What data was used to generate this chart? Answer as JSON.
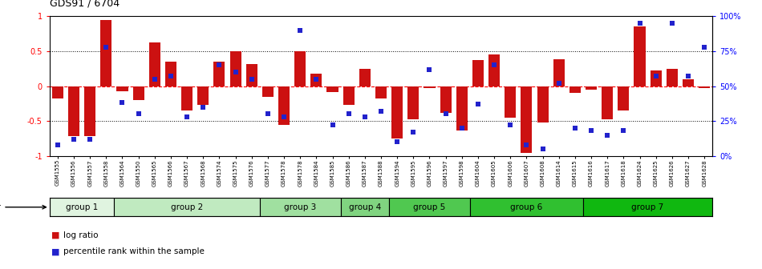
{
  "title": "GDS91 / 6704",
  "samples": [
    "GSM1555",
    "GSM1556",
    "GSM1557",
    "GSM1558",
    "GSM1564",
    "GSM1550",
    "GSM1565",
    "GSM1566",
    "GSM1567",
    "GSM1568",
    "GSM1574",
    "GSM1575",
    "GSM1576",
    "GSM1577",
    "GSM1578",
    "GSM1578",
    "GSM1584",
    "GSM1585",
    "GSM1586",
    "GSM1587",
    "GSM1588",
    "GSM1594",
    "GSM1595",
    "GSM1596",
    "GSM1597",
    "GSM1598",
    "GSM1604",
    "GSM1605",
    "GSM1606",
    "GSM1607",
    "GSM1608",
    "GSM1614",
    "GSM1615",
    "GSM1616",
    "GSM1617",
    "GSM1618",
    "GSM1624",
    "GSM1625",
    "GSM1626",
    "GSM1627",
    "GSM1628"
  ],
  "log_ratios": [
    -0.18,
    -0.72,
    -0.72,
    0.95,
    -0.07,
    -0.2,
    0.62,
    0.35,
    -0.35,
    -0.27,
    0.35,
    0.5,
    0.32,
    -0.15,
    -0.55,
    0.5,
    0.18,
    -0.09,
    -0.27,
    0.25,
    -0.18,
    -0.75,
    -0.48,
    -0.03,
    -0.38,
    -0.63,
    0.37,
    0.45,
    -0.45,
    -0.95,
    -0.52,
    0.38,
    -0.1,
    -0.05,
    -0.47,
    -0.35,
    0.85,
    0.22,
    0.25,
    0.1,
    -0.03
  ],
  "percentile_ranks": [
    0.08,
    0.12,
    0.12,
    0.78,
    0.38,
    0.3,
    0.55,
    0.57,
    0.28,
    0.35,
    0.65,
    0.6,
    0.55,
    0.3,
    0.28,
    0.9,
    0.55,
    0.22,
    0.3,
    0.28,
    0.32,
    0.1,
    0.17,
    0.62,
    0.3,
    0.2,
    0.37,
    0.65,
    0.22,
    0.08,
    0.05,
    0.52,
    0.2,
    0.18,
    0.15,
    0.18,
    0.95,
    0.57,
    0.95,
    0.57,
    0.78
  ],
  "groups": [
    {
      "label": "group 1",
      "start": 0,
      "end": 4,
      "color": "#e0f4e0"
    },
    {
      "label": "group 2",
      "start": 4,
      "end": 13,
      "color": "#c0eac0"
    },
    {
      "label": "group 3",
      "start": 13,
      "end": 18,
      "color": "#a0e0a0"
    },
    {
      "label": "group 4",
      "start": 18,
      "end": 21,
      "color": "#80d480"
    },
    {
      "label": "group 5",
      "start": 21,
      "end": 26,
      "color": "#50c850"
    },
    {
      "label": "group 6",
      "start": 26,
      "end": 33,
      "color": "#30c030"
    },
    {
      "label": "group 7",
      "start": 33,
      "end": 41,
      "color": "#10b810"
    }
  ],
  "bar_color": "#cc1111",
  "dot_color": "#2222cc",
  "bg_color": "#ffffff",
  "yticks_left": [
    -1.0,
    -0.5,
    0.0,
    0.5,
    1.0
  ],
  "yticklabels_left": [
    "-1",
    "-0.5",
    "0",
    "0.5",
    "1"
  ],
  "yticks_right_labels": [
    "0%",
    "25%",
    "50%",
    "75%",
    "100%"
  ]
}
